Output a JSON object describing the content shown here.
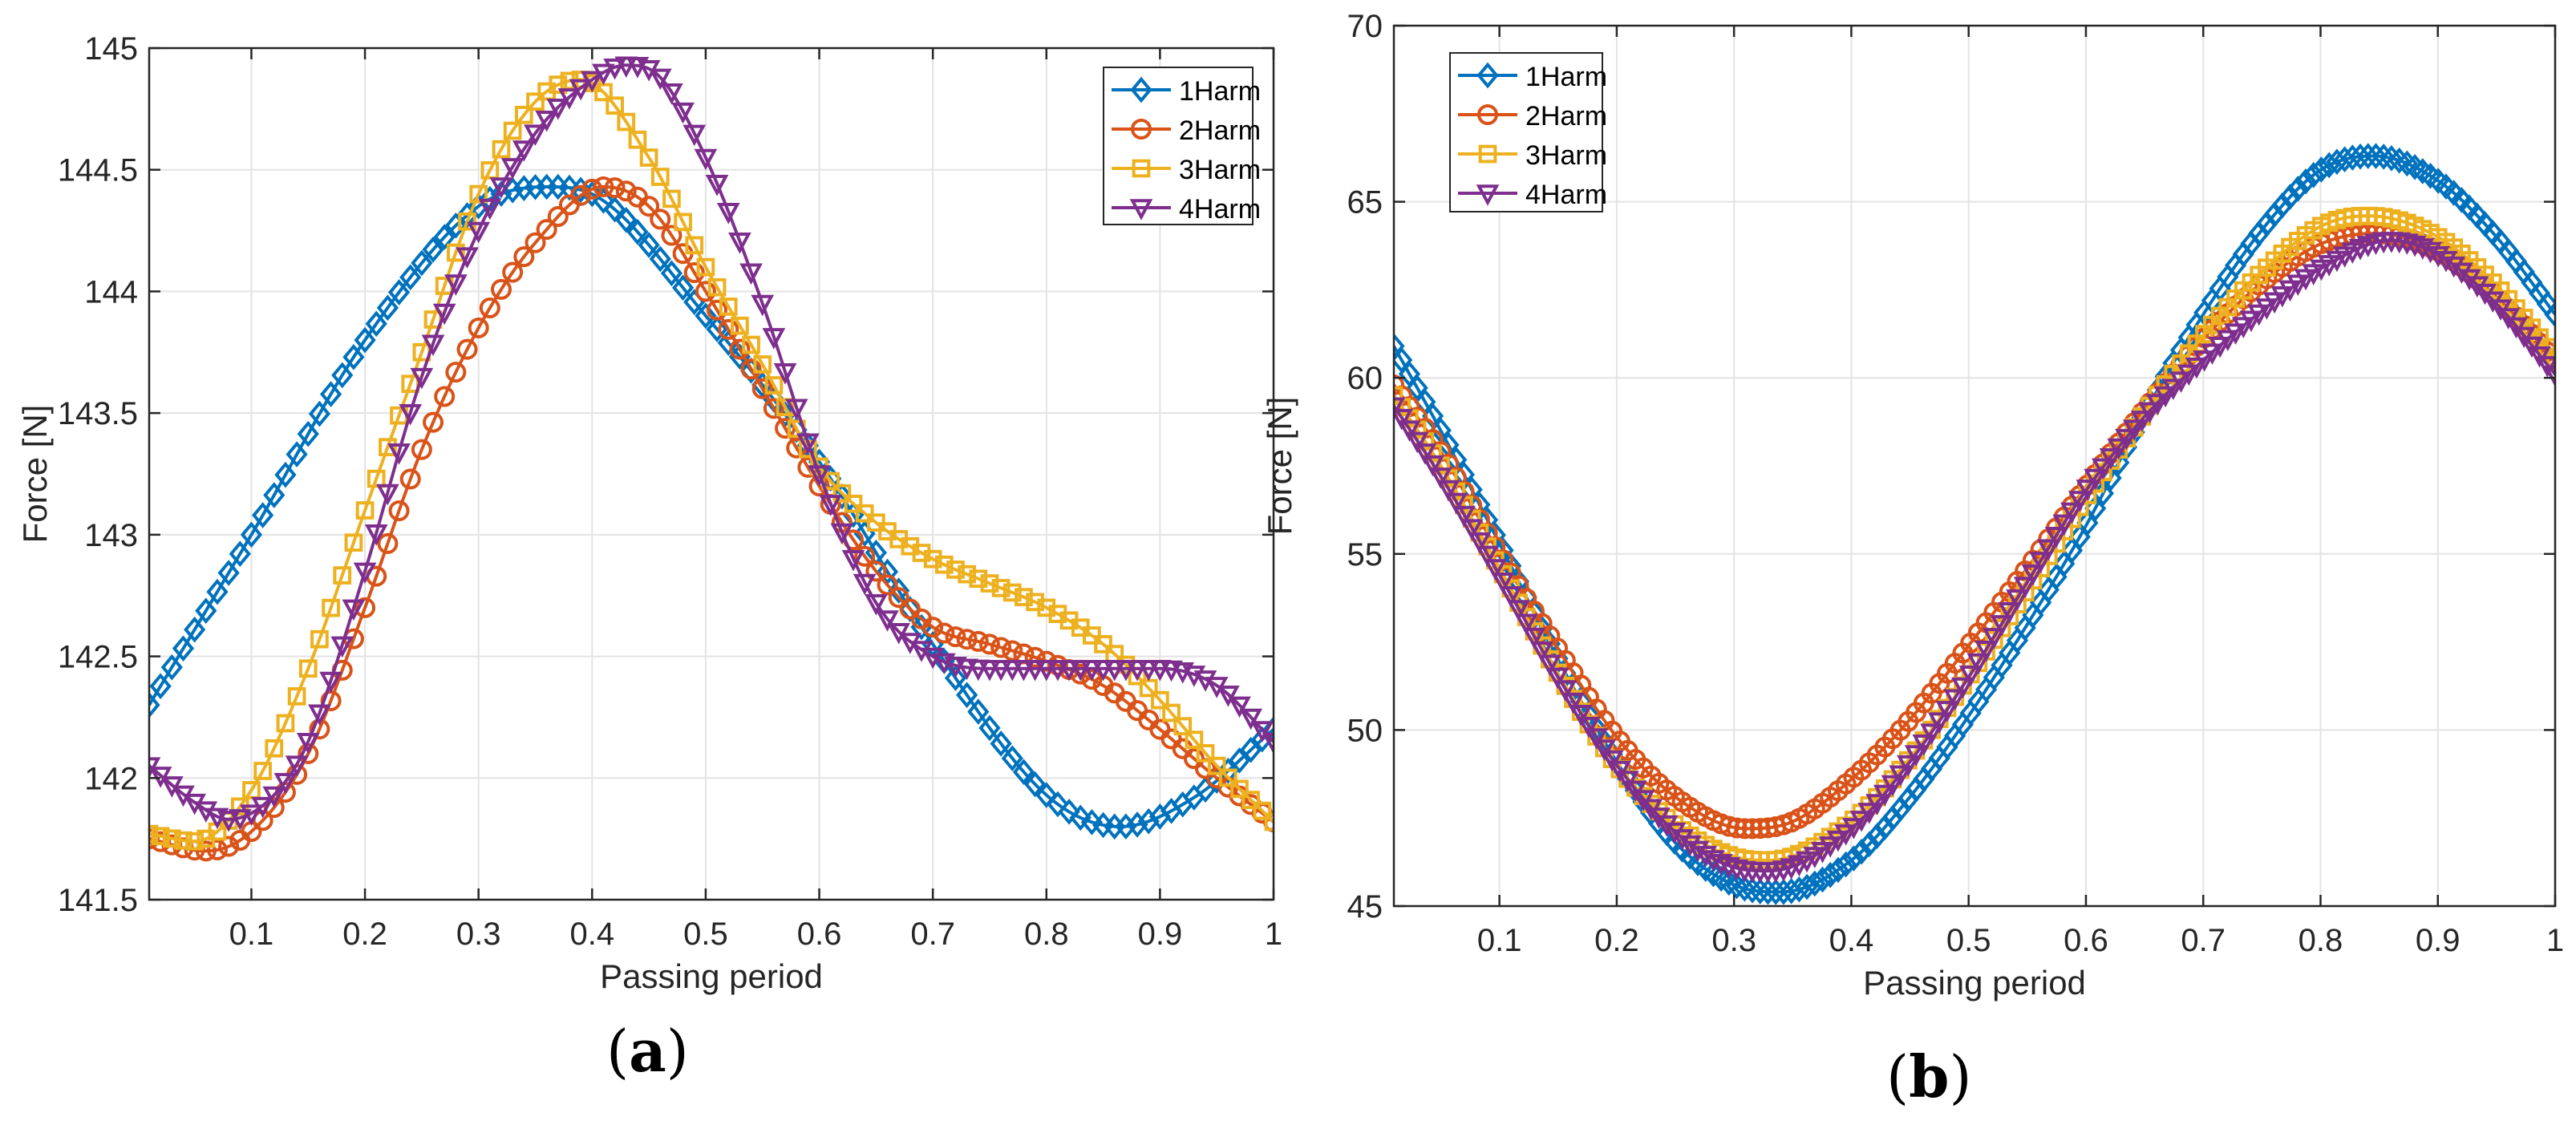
{
  "chart_data": [
    {
      "type": "line",
      "panel_label": "a",
      "xlabel": "Passing period",
      "ylabel": "Force [N]",
      "xlim": [
        0.01,
        1
      ],
      "ylim": [
        141.5,
        145
      ],
      "xticks": [
        0.1,
        0.2,
        0.3,
        0.4,
        0.5,
        0.6,
        0.7,
        0.8,
        0.9,
        1
      ],
      "xtick_labels": [
        "0.1",
        "0.2",
        "0.3",
        "0.4",
        "0.5",
        "0.6",
        "0.7",
        "0.8",
        "0.9",
        "1"
      ],
      "yticks": [
        141.5,
        142,
        142.5,
        143,
        143.5,
        144,
        144.5,
        145
      ],
      "ytick_labels": [
        "141.5",
        "142",
        "142.5",
        "143",
        "143.5",
        "144",
        "144.5",
        "145"
      ],
      "grid": true,
      "legend_position": "top-right",
      "series": [
        {
          "name": "1Harm",
          "color": "#0072BD",
          "marker": "diamond",
          "x": [
            0.01,
            0.1,
            0.2,
            0.3,
            0.36,
            0.4,
            0.5,
            0.6,
            0.7,
            0.8,
            0.865,
            0.93,
            1.0
          ],
          "y": [
            142.3,
            143.0,
            143.8,
            144.35,
            144.43,
            144.4,
            143.9,
            143.3,
            142.55,
            141.93,
            141.8,
            141.92,
            142.2
          ]
        },
        {
          "name": "2Harm",
          "color": "#D95319",
          "marker": "circle",
          "x": [
            0.01,
            0.06,
            0.1,
            0.15,
            0.2,
            0.25,
            0.3,
            0.35,
            0.41,
            0.45,
            0.5,
            0.55,
            0.6,
            0.65,
            0.7,
            0.75,
            0.8,
            0.85,
            0.9,
            0.95,
            1.0
          ],
          "y": [
            141.75,
            141.7,
            141.78,
            142.1,
            142.7,
            143.35,
            143.85,
            144.2,
            144.43,
            144.35,
            144.0,
            143.6,
            143.2,
            142.85,
            142.62,
            142.55,
            142.48,
            142.38,
            142.2,
            142.0,
            141.82
          ]
        },
        {
          "name": "3Harm",
          "color": "#EDB120",
          "marker": "square",
          "x": [
            0.01,
            0.05,
            0.1,
            0.15,
            0.2,
            0.25,
            0.3,
            0.35,
            0.39,
            0.45,
            0.5,
            0.55,
            0.6,
            0.65,
            0.7,
            0.75,
            0.8,
            0.85,
            0.9,
            0.95,
            1.0
          ],
          "y": [
            141.77,
            141.74,
            141.95,
            142.45,
            143.1,
            143.75,
            144.4,
            144.78,
            144.87,
            144.55,
            144.1,
            143.7,
            143.28,
            143.05,
            142.9,
            142.8,
            142.7,
            142.55,
            142.32,
            142.05,
            141.82
          ]
        },
        {
          "name": "4Harm",
          "color": "#7E2F8E",
          "marker": "triangle-down",
          "x": [
            0.01,
            0.05,
            0.08,
            0.12,
            0.15,
            0.2,
            0.25,
            0.3,
            0.35,
            0.4,
            0.43,
            0.46,
            0.5,
            0.55,
            0.6,
            0.65,
            0.7,
            0.75,
            0.8,
            0.85,
            0.9,
            0.95,
            1.0
          ],
          "y": [
            142.05,
            141.9,
            141.83,
            141.93,
            142.15,
            142.85,
            143.65,
            144.25,
            144.65,
            144.87,
            144.93,
            144.88,
            144.55,
            143.95,
            143.25,
            142.72,
            142.5,
            142.45,
            142.45,
            142.45,
            142.45,
            142.38,
            142.15
          ]
        }
      ]
    },
    {
      "type": "line",
      "panel_label": "b",
      "xlabel": "Passing period",
      "ylabel": "Force [N]",
      "xlim": [
        0.01,
        1
      ],
      "ylim": [
        45,
        70
      ],
      "xticks": [
        0.1,
        0.2,
        0.3,
        0.4,
        0.5,
        0.6,
        0.7,
        0.8,
        0.9,
        1
      ],
      "xtick_labels": [
        "0.1",
        "0.2",
        "0.3",
        "0.4",
        "0.5",
        "0.6",
        "0.7",
        "0.8",
        "0.9",
        "1"
      ],
      "yticks": [
        45,
        50,
        55,
        60,
        65,
        70
      ],
      "ytick_labels": [
        "45",
        "50",
        "55",
        "60",
        "65",
        "70"
      ],
      "grid": true,
      "legend_position": "top-left",
      "series": [
        {
          "name": "1Harm",
          "color": "#0072BD",
          "marker": "diamond",
          "x": [
            0.01,
            0.05,
            0.1,
            0.15,
            0.2,
            0.25,
            0.3,
            0.34,
            0.4,
            0.45,
            0.5,
            0.55,
            0.6,
            0.65,
            0.7,
            0.75,
            0.8,
            0.845,
            0.9,
            0.95,
            1.0
          ],
          "y": [
            60.9,
            58.5,
            55.3,
            52.0,
            49.1,
            46.8,
            45.6,
            45.4,
            46.3,
            48.1,
            50.4,
            53.0,
            55.8,
            59.0,
            61.8,
            64.2,
            65.9,
            66.3,
            65.6,
            64.0,
            61.8
          ]
        },
        {
          "name": "2Harm",
          "color": "#D95319",
          "marker": "circle",
          "x": [
            0.01,
            0.05,
            0.1,
            0.15,
            0.2,
            0.25,
            0.31,
            0.35,
            0.4,
            0.45,
            0.5,
            0.55,
            0.6,
            0.65,
            0.7,
            0.75,
            0.8,
            0.845,
            0.9,
            0.95,
            1.0
          ],
          "y": [
            59.8,
            57.9,
            55.0,
            52.3,
            49.8,
            48.1,
            47.2,
            47.4,
            48.6,
            50.3,
            52.4,
            54.6,
            56.9,
            59.1,
            61.1,
            62.7,
            63.8,
            64.1,
            63.6,
            62.3,
            60.5
          ]
        },
        {
          "name": "3Harm",
          "color": "#EDB120",
          "marker": "square",
          "x": [
            0.01,
            0.05,
            0.1,
            0.15,
            0.2,
            0.25,
            0.3,
            0.33,
            0.4,
            0.45,
            0.5,
            0.55,
            0.6,
            0.65,
            0.7,
            0.75,
            0.8,
            0.84,
            0.9,
            0.95,
            1.0
          ],
          "y": [
            59.5,
            57.5,
            54.6,
            51.6,
            49.0,
            47.3,
            46.4,
            46.3,
            47.4,
            49.2,
            51.5,
            54.0,
            56.6,
            59.0,
            61.2,
            63.0,
            64.3,
            64.6,
            64.0,
            62.6,
            60.6
          ]
        },
        {
          "name": "4Harm",
          "color": "#7E2F8E",
          "marker": "triangle-down",
          "x": [
            0.01,
            0.05,
            0.1,
            0.15,
            0.2,
            0.25,
            0.3,
            0.33,
            0.4,
            0.45,
            0.5,
            0.55,
            0.6,
            0.65,
            0.7,
            0.75,
            0.8,
            0.86,
            0.9,
            0.95,
            1.0
          ],
          "y": [
            59.2,
            57.2,
            54.4,
            51.5,
            49.0,
            47.1,
            46.1,
            46.0,
            47.2,
            49.1,
            51.5,
            54.2,
            56.8,
            58.9,
            60.5,
            61.9,
            63.1,
            63.9,
            63.5,
            62.1,
            60.1
          ]
        }
      ]
    }
  ]
}
